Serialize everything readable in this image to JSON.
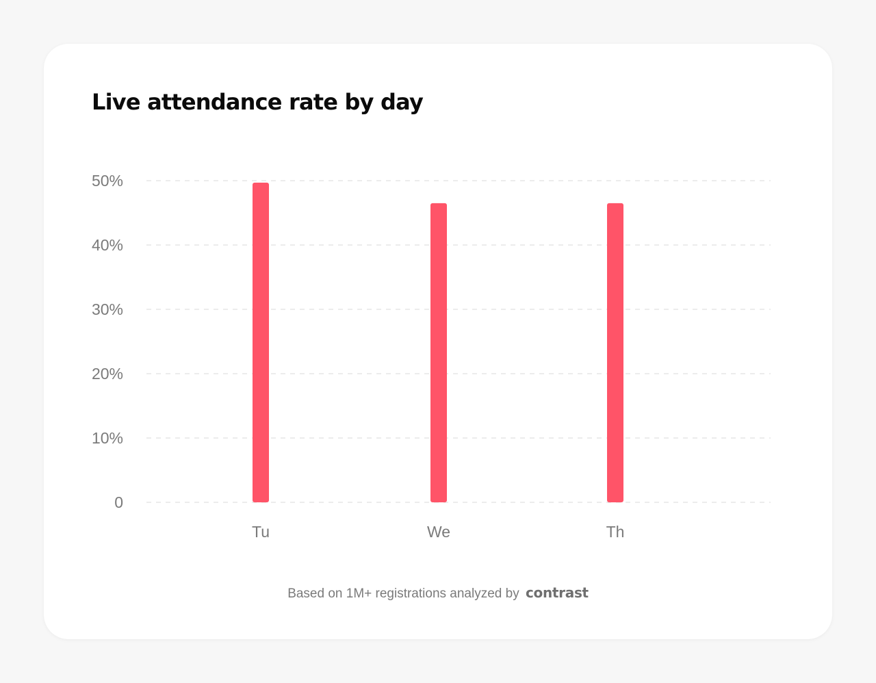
{
  "chart_data": {
    "type": "bar",
    "title": "Live attendance rate by day",
    "categories": [
      "Tu",
      "We",
      "Th"
    ],
    "values": [
      49.7,
      46.5,
      46.5
    ],
    "ylim": [
      0,
      50
    ],
    "yticks": [
      0,
      10,
      20,
      30,
      40,
      50
    ],
    "ytick_labels": [
      "0",
      "10%",
      "20%",
      "30%",
      "40%",
      "50%"
    ],
    "grid": true,
    "grid_style": "dashed",
    "xlabel": "",
    "ylabel": "",
    "bar_color": "#ff5468",
    "grid_color": "#e6e6e6",
    "tick_color": "#7a7a7a"
  },
  "footer": {
    "text": "Based on 1M+ registrations analyzed by",
    "brand": "contrast"
  }
}
